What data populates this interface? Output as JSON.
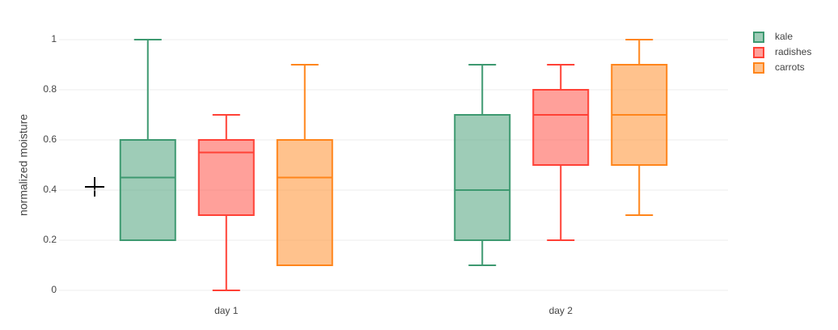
{
  "chart_data": {
    "type": "box",
    "y_label": "normalized moisture",
    "categories": [
      "day 1",
      "day 2"
    ],
    "series": [
      {
        "name": "kale",
        "color": "#3d9970",
        "min": [
          0.2,
          0.1
        ],
        "q1": [
          0.2,
          0.2
        ],
        "median": [
          0.45,
          0.4
        ],
        "q3": [
          0.6,
          0.7
        ],
        "max": [
          1,
          0.9
        ]
      },
      {
        "name": "radishes",
        "color": "#ff4136",
        "min": [
          0,
          0.2
        ],
        "q1": [
          0.3,
          0.5
        ],
        "median": [
          0.55,
          0.7
        ],
        "q3": [
          0.6,
          0.8
        ],
        "max": [
          0.7,
          0.9
        ]
      },
      {
        "name": "carrots",
        "color": "#ff851b",
        "min": [
          0.1,
          0.3
        ],
        "q1": [
          0.1,
          0.5
        ],
        "median": [
          0.45,
          0.7
        ],
        "q3": [
          0.6,
          0.9
        ],
        "max": [
          0.9,
          1
        ]
      }
    ],
    "ylim": [
      0,
      1
    ],
    "yticks": [
      0,
      0.2,
      0.4,
      0.6,
      0.8,
      1
    ],
    "grid": true,
    "legend": "top-right"
  }
}
